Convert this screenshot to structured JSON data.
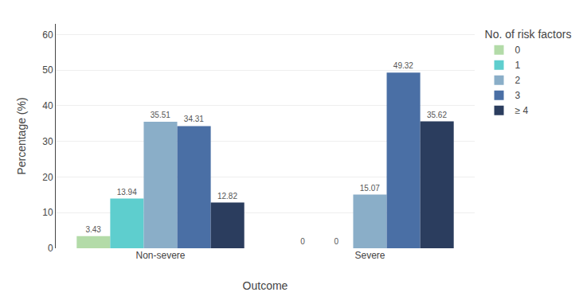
{
  "chart_data": {
    "type": "bar",
    "xlabel": "Outcome",
    "ylabel": "Percentage (%)",
    "legend_title": "No. of risk factors",
    "categories": [
      "Non-severe",
      "Severe"
    ],
    "series": [
      {
        "name": "0",
        "color": "#b3dba8",
        "values": [
          3.43,
          0
        ]
      },
      {
        "name": "1",
        "color": "#5ecece",
        "values": [
          13.94,
          0
        ]
      },
      {
        "name": "2",
        "color": "#8aaec8",
        "values": [
          35.51,
          15.07
        ]
      },
      {
        "name": "3",
        "color": "#4a6fa5",
        "values": [
          34.31,
          49.32
        ]
      },
      {
        "name": "≥ 4",
        "color": "#2b3d5e",
        "values": [
          12.82,
          35.62
        ]
      }
    ],
    "ylim": [
      0,
      63
    ],
    "yticks": [
      0,
      10,
      20,
      30,
      40,
      50,
      60
    ],
    "grid": true,
    "legend": "right",
    "data_labels": true
  }
}
